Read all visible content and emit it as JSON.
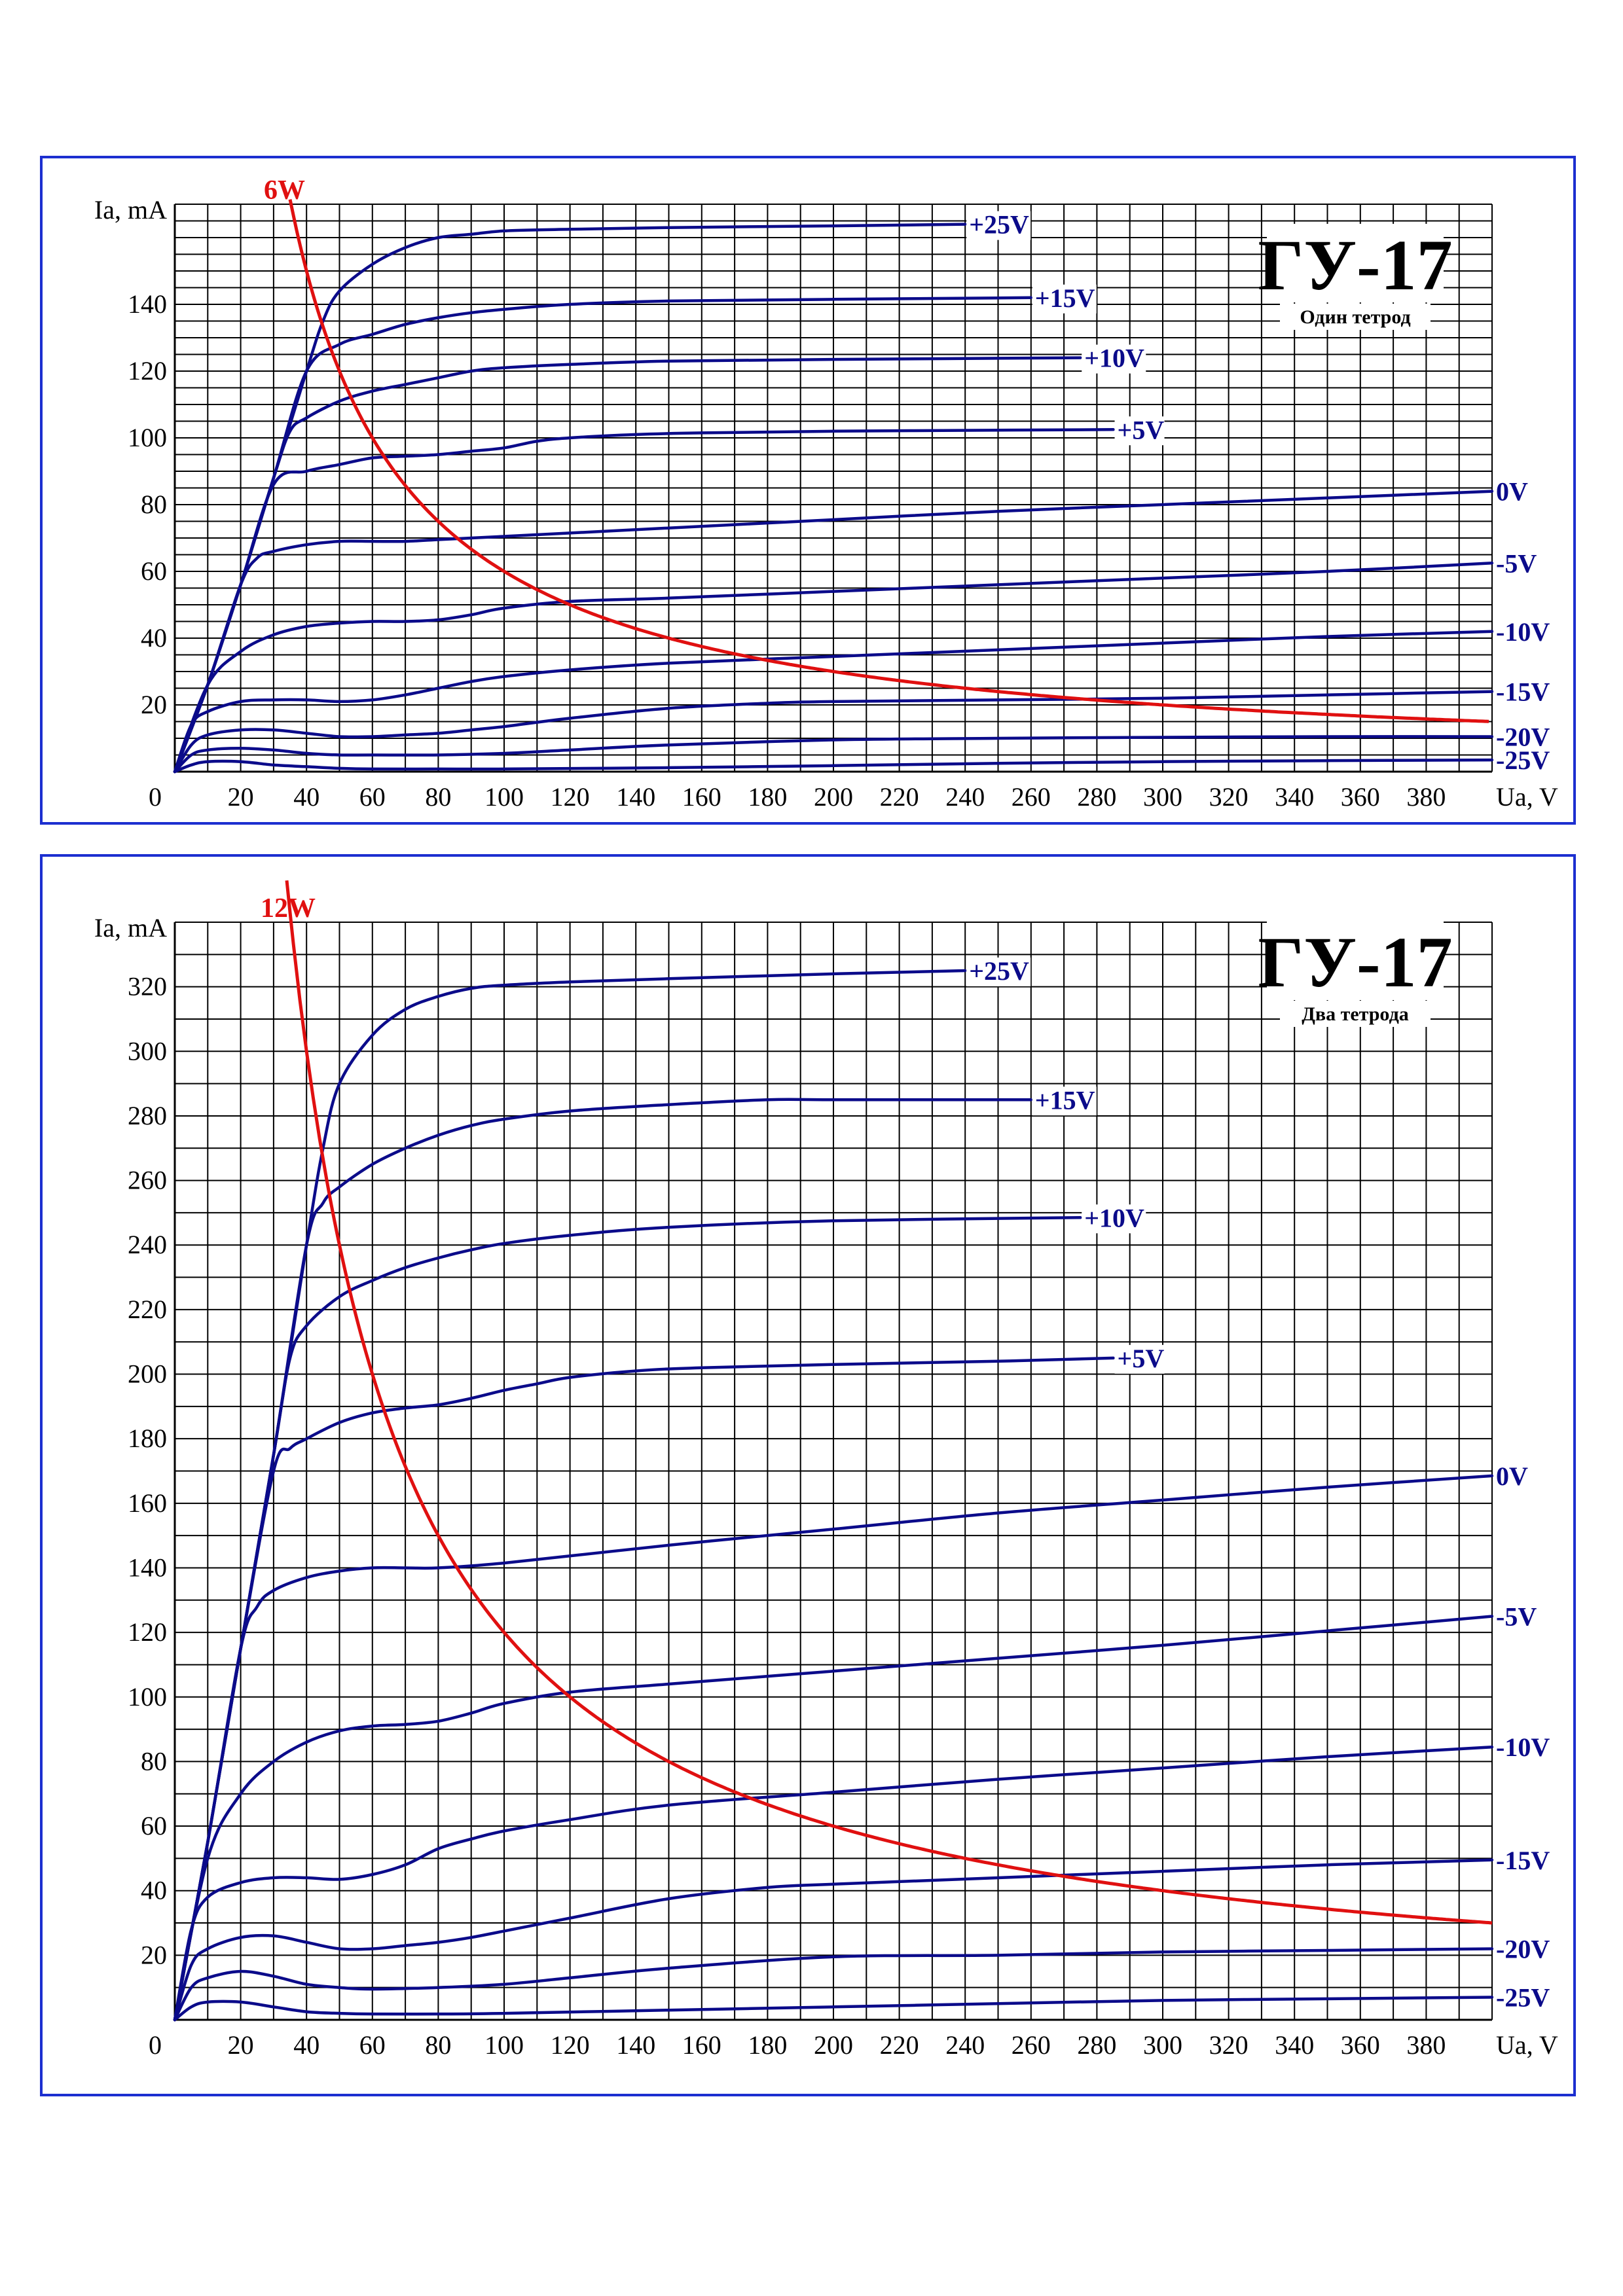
{
  "colors": {
    "border": "#1c2fd0",
    "curve": "#0b0b8a",
    "power": "#e01010",
    "grid": "#000000"
  },
  "chart_data": [
    {
      "type": "line",
      "title": "ГУ-17",
      "subtitle": "Один тетрод",
      "xlabel": "Ua, V",
      "ylabel": "Ia, mA",
      "xlim": [
        0,
        400
      ],
      "ylim": [
        0,
        170
      ],
      "grid": true,
      "x_ticks": [
        "20",
        "40",
        "60",
        "80",
        "100",
        "120",
        "140",
        "160",
        "180",
        "200",
        "220",
        "240",
        "260",
        "280",
        "300",
        "320",
        "340",
        "360",
        "380"
      ],
      "y_ticks": [
        "20",
        "40",
        "60",
        "80",
        "100",
        "120",
        "140"
      ],
      "origin_label": "0",
      "series": [
        {
          "name": "+25V",
          "x": [
            0,
            10,
            20,
            30,
            40,
            45,
            50,
            60,
            70,
            80,
            90,
            100,
            120,
            150,
            200,
            240
          ],
          "y": [
            0,
            26,
            56,
            88,
            120,
            135,
            144,
            152,
            157,
            160,
            161,
            162,
            162.5,
            163,
            163.5,
            164
          ]
        },
        {
          "name": "+15V",
          "x": [
            0,
            10,
            20,
            30,
            40,
            50,
            60,
            70,
            80,
            90,
            100,
            120,
            150,
            200,
            260
          ],
          "y": [
            0,
            26,
            56,
            88,
            120,
            128,
            131,
            134,
            136,
            137.5,
            138.5,
            140,
            141,
            141.5,
            142
          ]
        },
        {
          "name": "+10V",
          "x": [
            0,
            10,
            20,
            30,
            35,
            40,
            50,
            60,
            70,
            80,
            90,
            100,
            120,
            150,
            200,
            275
          ],
          "y": [
            0,
            26,
            56,
            88,
            102,
            106,
            111,
            114,
            116,
            118,
            120,
            121,
            122,
            123,
            123.5,
            124
          ]
        },
        {
          "name": "+5V",
          "x": [
            0,
            10,
            20,
            30,
            40,
            50,
            60,
            70,
            80,
            90,
            100,
            110,
            120,
            140,
            160,
            200,
            250,
            285
          ],
          "y": [
            0,
            26,
            56,
            86,
            90,
            92,
            94,
            94.5,
            95,
            96,
            97,
            99,
            100,
            101,
            101.5,
            102,
            102.3,
            102.5
          ]
        },
        {
          "name": "0V",
          "x": [
            0,
            10,
            20,
            25,
            30,
            40,
            50,
            60,
            70,
            80,
            100,
            150,
            200,
            250,
            300,
            350,
            400
          ],
          "y": [
            0,
            26,
            56,
            64,
            66,
            68,
            69,
            69,
            69,
            69.5,
            70.5,
            73,
            75.5,
            78,
            80,
            82,
            84
          ]
        },
        {
          "name": "-5V",
          "x": [
            0,
            10,
            20,
            30,
            40,
            50,
            60,
            70,
            80,
            90,
            100,
            120,
            150,
            200,
            250,
            300,
            350,
            400
          ],
          "y": [
            0,
            26,
            36,
            41,
            43.5,
            44.5,
            45,
            45,
            45.5,
            47,
            49,
            51,
            52,
            54,
            56,
            58,
            60,
            62.5
          ]
        },
        {
          "name": "-10V",
          "x": [
            0,
            5,
            10,
            20,
            30,
            40,
            50,
            60,
            70,
            80,
            90,
            100,
            120,
            150,
            200,
            250,
            300,
            350,
            400
          ],
          "y": [
            0,
            14,
            18,
            21,
            21.5,
            21.5,
            21,
            21.5,
            23,
            25,
            27,
            28.5,
            30.5,
            32.5,
            34.5,
            36.5,
            38.5,
            40.5,
            42
          ]
        },
        {
          "name": "-15V",
          "x": [
            0,
            5,
            10,
            20,
            30,
            40,
            50,
            60,
            70,
            80,
            90,
            100,
            120,
            150,
            180,
            200,
            250,
            300,
            350,
            400
          ],
          "y": [
            0,
            8,
            11,
            12.5,
            12.5,
            11.5,
            10.5,
            10.5,
            11,
            11.5,
            12.5,
            13.5,
            16,
            19,
            20.5,
            21,
            21.5,
            22,
            23,
            24
          ]
        },
        {
          "name": "-20V",
          "x": [
            0,
            5,
            10,
            20,
            30,
            40,
            50,
            60,
            80,
            100,
            120,
            150,
            200,
            250,
            300,
            350,
            400
          ],
          "y": [
            0,
            5,
            6.5,
            7,
            6.5,
            5.5,
            5,
            5,
            5,
            5.5,
            6.5,
            8,
            9.5,
            10,
            10.3,
            10.5,
            10.5
          ]
        },
        {
          "name": "-25V",
          "x": [
            0,
            5,
            10,
            20,
            30,
            40,
            50,
            60,
            80,
            100,
            150,
            200,
            250,
            300,
            350,
            400
          ],
          "y": [
            0,
            2,
            3,
            3,
            2,
            1.5,
            1,
            0.8,
            0.8,
            0.8,
            1.2,
            1.8,
            2.5,
            3,
            3.3,
            3.5
          ]
        }
      ],
      "power_curve": {
        "name": "6W",
        "watts": 6,
        "x_start": 35,
        "x_end": 400
      }
    },
    {
      "type": "line",
      "title": "ГУ-17",
      "subtitle": "Два тетрода",
      "xlabel": "Ua, V",
      "ylabel": "Ia, mA",
      "xlim": [
        0,
        400
      ],
      "ylim": [
        0,
        340
      ],
      "grid": true,
      "x_ticks": [
        "20",
        "40",
        "60",
        "80",
        "100",
        "120",
        "140",
        "160",
        "180",
        "200",
        "220",
        "240",
        "260",
        "280",
        "300",
        "320",
        "340",
        "360",
        "380"
      ],
      "y_ticks": [
        "20",
        "40",
        "60",
        "80",
        "100",
        "120",
        "140",
        "160",
        "180",
        "200",
        "220",
        "240",
        "260",
        "280",
        "300",
        "320"
      ],
      "origin_label": "0",
      "series": [
        {
          "name": "+25V",
          "x": [
            0,
            10,
            20,
            30,
            40,
            45,
            50,
            60,
            70,
            80,
            90,
            100,
            120,
            150,
            200,
            240
          ],
          "y": [
            0,
            55,
            115,
            175,
            240,
            270,
            290,
            305,
            313,
            317,
            319.5,
            320.5,
            321.5,
            322.5,
            324,
            325
          ]
        },
        {
          "name": "+15V",
          "x": [
            0,
            10,
            20,
            30,
            40,
            45,
            50,
            60,
            70,
            80,
            90,
            100,
            120,
            150,
            180,
            200,
            260
          ],
          "y": [
            0,
            55,
            115,
            175,
            240,
            253,
            258,
            265,
            270,
            274,
            277,
            279,
            281.5,
            283.5,
            285,
            285,
            285
          ]
        },
        {
          "name": "+10V",
          "x": [
            0,
            10,
            20,
            30,
            35,
            40,
            50,
            60,
            70,
            80,
            90,
            100,
            120,
            150,
            200,
            275
          ],
          "y": [
            0,
            55,
            115,
            175,
            205,
            215,
            224,
            229,
            233,
            236,
            238.5,
            240.5,
            243,
            245.5,
            247.5,
            248.5
          ]
        },
        {
          "name": "+5V",
          "x": [
            0,
            10,
            20,
            30,
            35,
            40,
            50,
            60,
            70,
            80,
            90,
            100,
            110,
            120,
            140,
            160,
            200,
            250,
            285
          ],
          "y": [
            0,
            55,
            115,
            170,
            177,
            180,
            185,
            188,
            189.5,
            190.5,
            192.5,
            195,
            197,
            199,
            201,
            202,
            203,
            204,
            205
          ]
        },
        {
          "name": "0V",
          "x": [
            0,
            10,
            20,
            25,
            30,
            40,
            50,
            60,
            70,
            80,
            100,
            150,
            200,
            250,
            300,
            350,
            400
          ],
          "y": [
            0,
            55,
            115,
            128,
            133,
            137,
            139,
            140,
            140,
            140,
            141.5,
            147,
            152,
            157,
            161,
            165,
            168.5
          ]
        },
        {
          "name": "-5V",
          "x": [
            0,
            10,
            20,
            30,
            40,
            50,
            60,
            70,
            80,
            90,
            100,
            120,
            150,
            200,
            250,
            300,
            350,
            400
          ],
          "y": [
            0,
            50,
            70,
            80,
            86,
            89.5,
            91,
            91.5,
            92.5,
            95,
            98,
            101.5,
            104,
            108,
            112,
            116,
            120.5,
            125
          ]
        },
        {
          "name": "-10V",
          "x": [
            0,
            5,
            10,
            20,
            30,
            40,
            50,
            60,
            70,
            80,
            90,
            100,
            120,
            150,
            200,
            250,
            300,
            350,
            400
          ],
          "y": [
            0,
            28,
            38,
            42.5,
            44,
            44,
            43.5,
            45,
            48,
            53,
            56,
            58.5,
            62,
            66.5,
            70.5,
            74.5,
            78,
            81.5,
            84.5
          ]
        },
        {
          "name": "-15V",
          "x": [
            0,
            5,
            10,
            20,
            30,
            40,
            50,
            60,
            70,
            80,
            90,
            100,
            120,
            150,
            180,
            200,
            250,
            300,
            350,
            400
          ],
          "y": [
            0,
            17,
            22,
            25.5,
            26,
            24,
            22,
            22,
            23,
            24,
            25.5,
            27.5,
            31.5,
            37.5,
            41,
            42,
            44,
            46,
            48,
            49.5
          ]
        },
        {
          "name": "-20V",
          "x": [
            0,
            5,
            10,
            20,
            30,
            40,
            50,
            60,
            80,
            100,
            120,
            150,
            200,
            250,
            300,
            350,
            400
          ],
          "y": [
            0,
            10,
            13,
            15,
            13.5,
            11,
            10,
            9.5,
            10,
            11,
            13,
            16,
            19.5,
            20,
            21,
            21.5,
            22
          ]
        },
        {
          "name": "-25V",
          "x": [
            0,
            5,
            10,
            20,
            30,
            40,
            50,
            60,
            80,
            100,
            150,
            200,
            250,
            300,
            350,
            400
          ],
          "y": [
            0,
            4,
            5.5,
            5.5,
            4,
            2.5,
            2,
            1.8,
            1.8,
            2,
            3,
            4,
            5,
            6,
            6.5,
            7
          ]
        }
      ],
      "power_curve": {
        "name": "12W",
        "watts": 12,
        "x_start": 32,
        "x_end": 400
      }
    }
  ]
}
